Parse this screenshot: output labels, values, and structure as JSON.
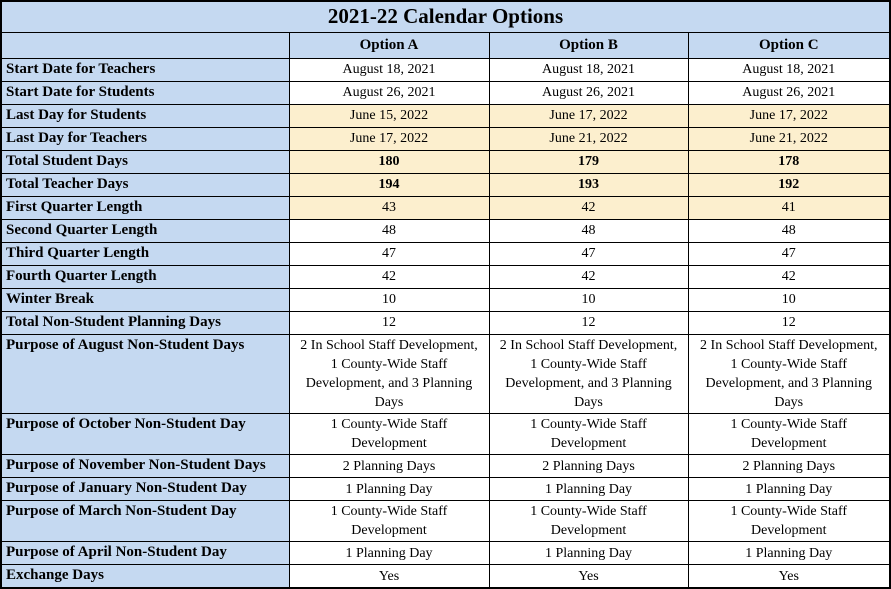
{
  "title": "2021-22 Calendar Options",
  "columns": [
    "Option A",
    "Option B",
    "Option C"
  ],
  "colors": {
    "header_blue": "#c5d9f1",
    "highlight_cream": "#fcefce",
    "border": "#000000",
    "text": "#000000"
  },
  "rows": [
    {
      "label": "Start Date for Teachers",
      "values": [
        "August 18, 2021",
        "August 18, 2021",
        "August 18, 2021"
      ],
      "highlight": false,
      "bold": false
    },
    {
      "label": "Start Date for Students",
      "values": [
        "August 26, 2021",
        "August 26, 2021",
        "August 26, 2021"
      ],
      "highlight": false,
      "bold": false
    },
    {
      "label": "Last Day for Students",
      "values": [
        "June 15, 2022",
        "June 17, 2022",
        "June 17, 2022"
      ],
      "highlight": true,
      "bold": false
    },
    {
      "label": "Last Day for Teachers",
      "values": [
        "June 17, 2022",
        "June 21, 2022",
        "June 21, 2022"
      ],
      "highlight": true,
      "bold": false
    },
    {
      "label": "Total Student Days",
      "values": [
        "180",
        "179",
        "178"
      ],
      "highlight": true,
      "bold": true
    },
    {
      "label": "Total Teacher Days",
      "values": [
        "194",
        "193",
        "192"
      ],
      "highlight": true,
      "bold": true
    },
    {
      "label": "First Quarter Length",
      "values": [
        "43",
        "42",
        "41"
      ],
      "highlight": true,
      "bold": false
    },
    {
      "label": "Second Quarter Length",
      "values": [
        "48",
        "48",
        "48"
      ],
      "highlight": false,
      "bold": false
    },
    {
      "label": "Third Quarter Length",
      "values": [
        "47",
        "47",
        "47"
      ],
      "highlight": false,
      "bold": false
    },
    {
      "label": "Fourth Quarter Length",
      "values": [
        "42",
        "42",
        "42"
      ],
      "highlight": false,
      "bold": false
    },
    {
      "label": "Winter Break",
      "values": [
        "10",
        "10",
        "10"
      ],
      "highlight": false,
      "bold": false
    },
    {
      "label": "Total Non-Student Planning Days",
      "values": [
        "12",
        "12",
        "12"
      ],
      "highlight": false,
      "bold": false
    },
    {
      "label": "Purpose of August Non-Student Days",
      "values": [
        "2 In School Staff Development, 1 County-Wide Staff Development, and 3 Planning Days",
        "2 In School Staff Development, 1 County-Wide Staff Development, and 3 Planning Days",
        "2 In School Staff Development, 1 County-Wide Staff Development, and 3 Planning Days"
      ],
      "highlight": false,
      "bold": false
    },
    {
      "label": "Purpose of October Non-Student Day",
      "values": [
        "1 County-Wide Staff Development",
        "1 County-Wide Staff Development",
        "1 County-Wide Staff Development"
      ],
      "highlight": false,
      "bold": false
    },
    {
      "label": "Purpose of November Non-Student Days",
      "values": [
        "2 Planning Days",
        "2 Planning Days",
        "2 Planning Days"
      ],
      "highlight": false,
      "bold": false
    },
    {
      "label": "Purpose of January Non-Student Day",
      "values": [
        "1 Planning Day",
        "1 Planning Day",
        "1 Planning Day"
      ],
      "highlight": false,
      "bold": false
    },
    {
      "label": "Purpose of March Non-Student Day",
      "values": [
        "1 County-Wide Staff Development",
        "1 County-Wide Staff Development",
        "1 County-Wide Staff Development"
      ],
      "highlight": false,
      "bold": false
    },
    {
      "label": "Purpose of April Non-Student Day",
      "values": [
        "1 Planning Day",
        "1 Planning Day",
        "1 Planning Day"
      ],
      "highlight": false,
      "bold": false
    },
    {
      "label": "Exchange Days",
      "values": [
        "Yes",
        "Yes",
        "Yes"
      ],
      "highlight": false,
      "bold": false
    }
  ]
}
